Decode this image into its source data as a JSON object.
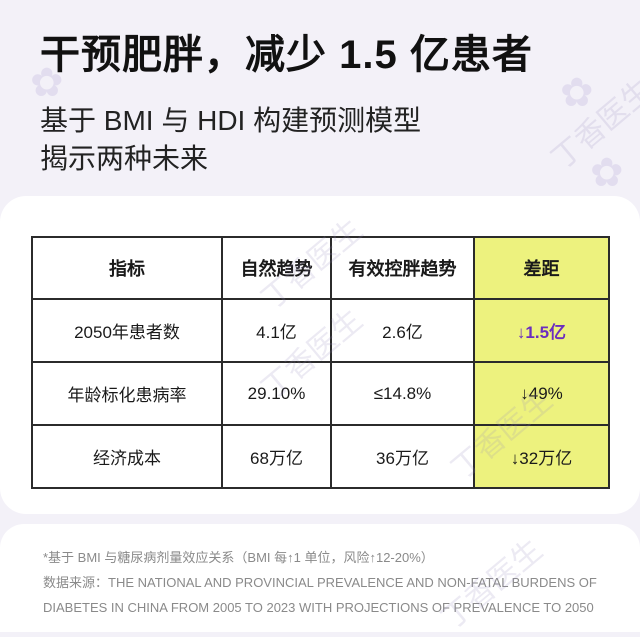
{
  "header": {
    "title": "干预肥胖，减少 1.5 亿患者",
    "subtitle_line1": "基于 BMI 与 HDI 构建预测模型",
    "subtitle_line2": "揭示两种未来"
  },
  "table": {
    "headers": [
      "指标",
      "自然趋势",
      "有效控胖趋势",
      "差距"
    ],
    "rows": [
      {
        "label": "2050年患者数",
        "natural": "4.1亿",
        "controlled": "2.6亿",
        "gap": "↓1.5亿"
      },
      {
        "label": "年龄标化患病率",
        "natural": "29.10%",
        "controlled": "≤14.8%",
        "gap": "↓49%"
      },
      {
        "label": "经济成本",
        "natural": "68万亿",
        "controlled": "36万亿",
        "gap": "↓32万亿"
      }
    ],
    "highlight_color": "#edf27e"
  },
  "footer": {
    "note": "*基于 BMI 与糖尿病剂量效应关系（BMI 每↑1 单位，风险↑12-20%）",
    "source": "数据来源：THE NATIONAL AND PROVINCIAL PREVALENCE AND NON-FATAL BURDENS OF DIABETES IN CHINA FROM 2005 TO 2023 WITH PROJECTIONS OF PREVALENCE TO 2050"
  },
  "watermark": {
    "text": "丁香医生"
  }
}
